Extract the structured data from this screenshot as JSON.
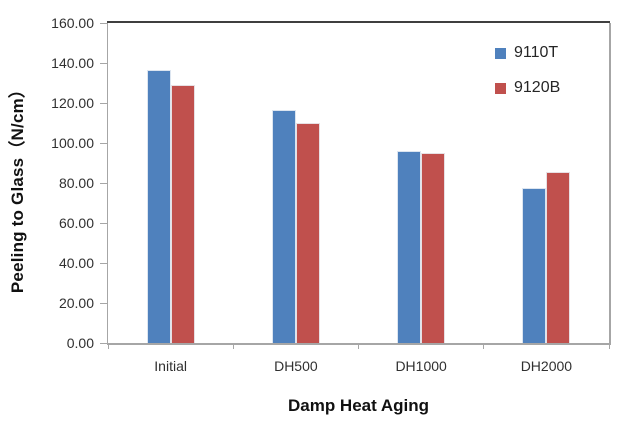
{
  "chart_data": {
    "type": "bar",
    "title": "",
    "xlabel": "Damp Heat Aging",
    "ylabel": "Peeling to Glass（N/cm）",
    "categories": [
      "Initial",
      "DH500",
      "DH1000",
      "DH2000"
    ],
    "series": [
      {
        "name": "9110T",
        "color": "#4F81BD",
        "values": [
          136.6,
          116.7,
          96.1,
          77.5
        ]
      },
      {
        "name": "9120B",
        "color": "#C0504D",
        "values": [
          129.0,
          110.0,
          95.0,
          85.6
        ]
      }
    ],
    "ylim": [
      0,
      160
    ],
    "ytick_step": 20,
    "ytick_labels": [
      "0.00",
      "20.00",
      "40.00",
      "60.00",
      "80.00",
      "100.00",
      "120.00",
      "140.00",
      "160.00"
    ],
    "grid": false,
    "legend_position": "top-right",
    "colors": {
      "plot_border_top": "#3f3f3f",
      "axis_gray": "#a6a6a6",
      "tick_label": "#303030"
    }
  }
}
